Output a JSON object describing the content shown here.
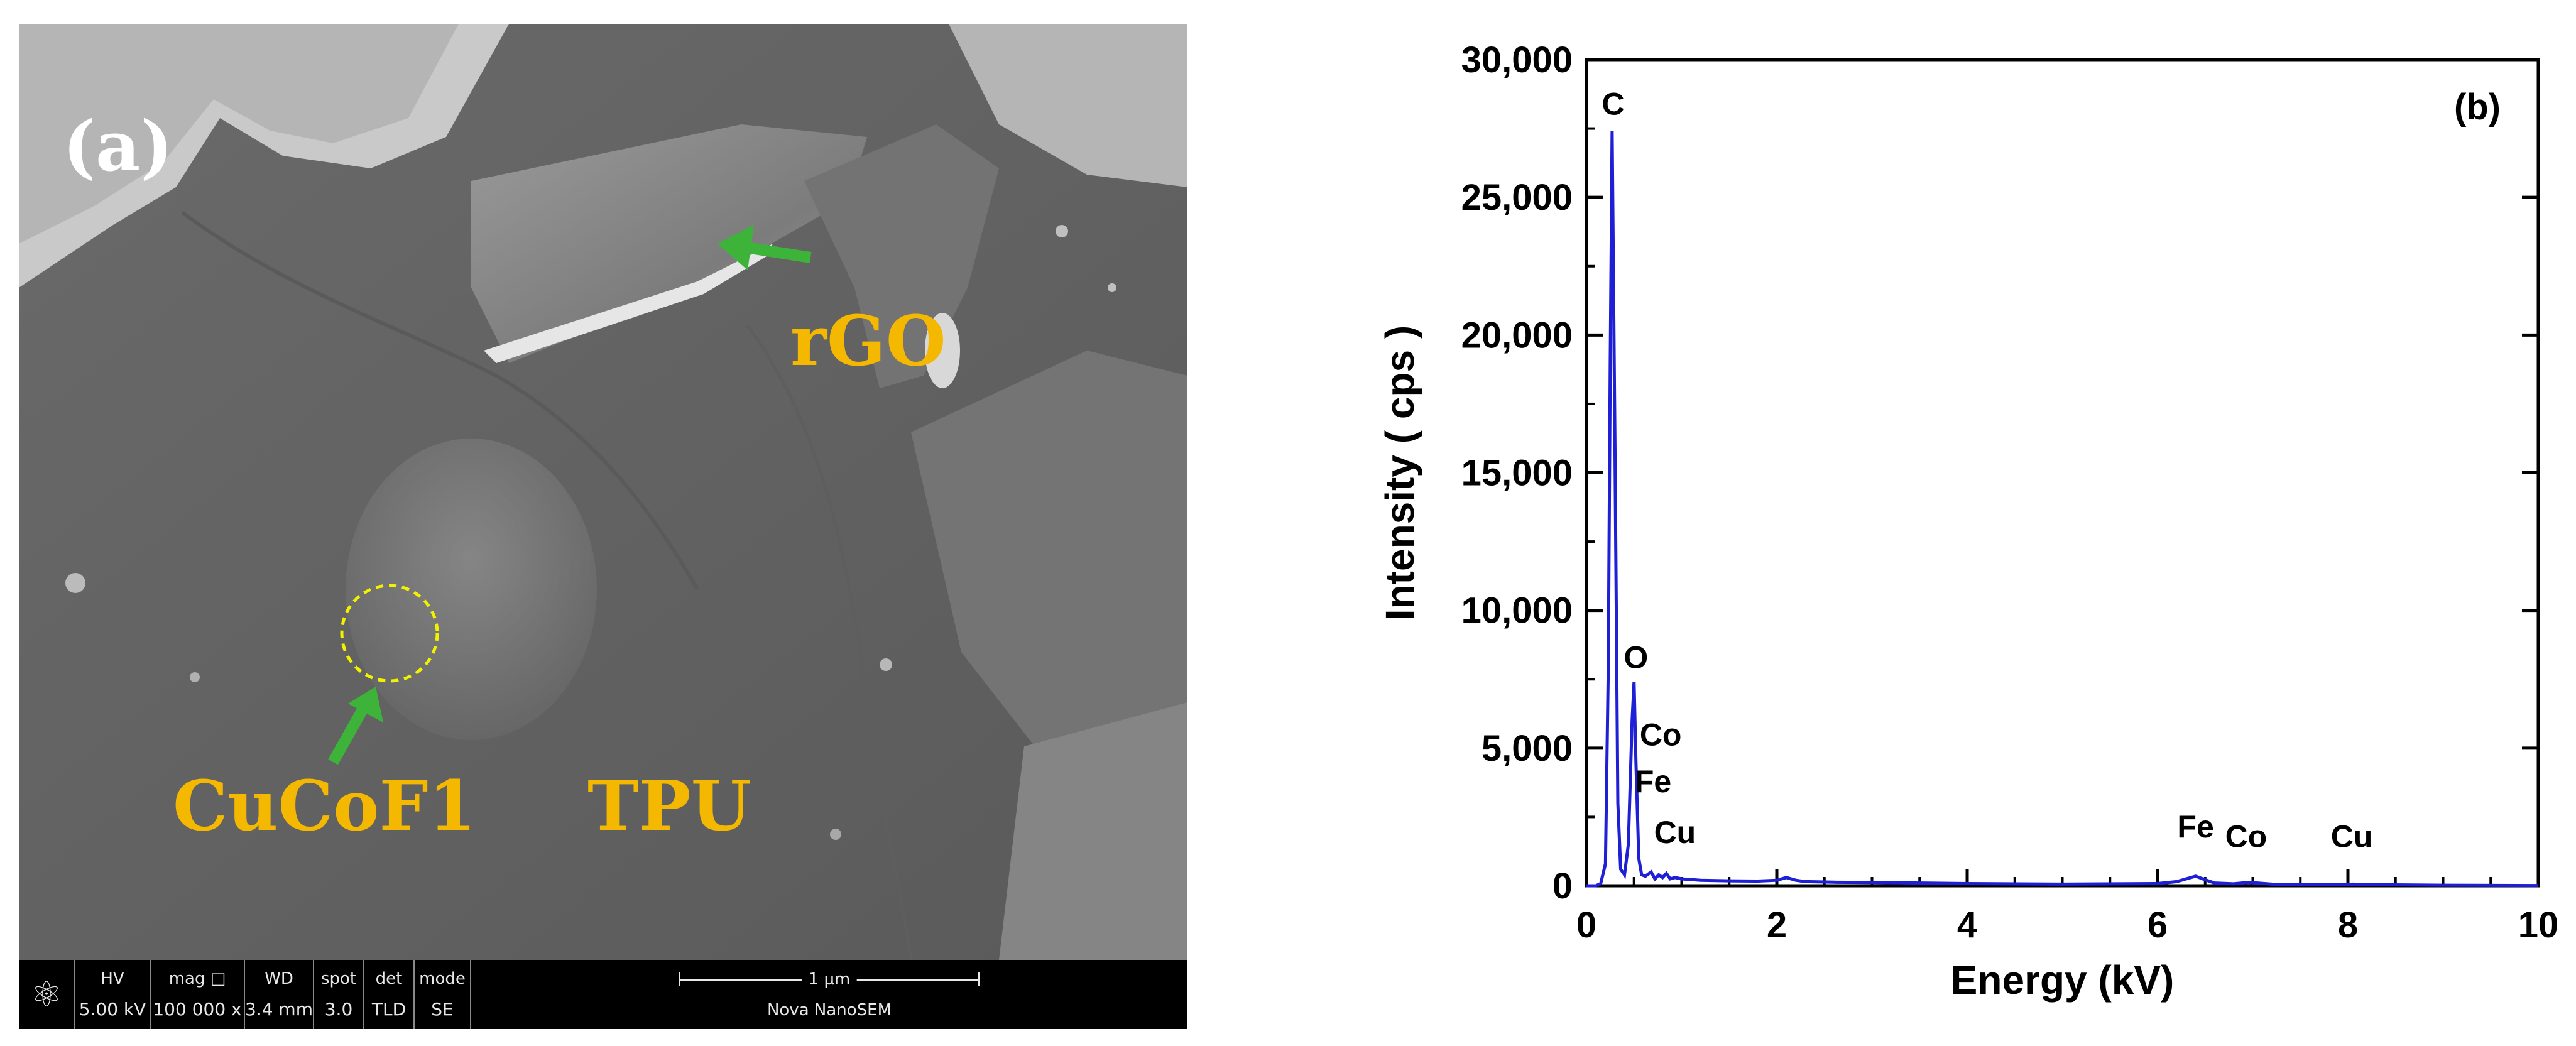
{
  "panel_a": {
    "tag": "(a)",
    "labels": {
      "rgo": "rGO",
      "cucof": "CuCoF1",
      "tpu": "TPU"
    },
    "colors": {
      "label": "#f5b800",
      "arrow": "#3db339",
      "circle": "#f2f200"
    },
    "info_bar": {
      "logo_icon": "atom-icon",
      "cells": [
        {
          "key": "HV",
          "value": "5.00 kV"
        },
        {
          "key": "mag",
          "value": "100 000 x"
        },
        {
          "key": "WD",
          "value": "3.4 mm"
        },
        {
          "key": "spot",
          "value": "3.0"
        },
        {
          "key": "det",
          "value": "TLD"
        },
        {
          "key": "mode",
          "value": "SE"
        }
      ],
      "scale_label": "1 µm",
      "instrument": "Nova NanoSEM"
    }
  },
  "chart_data": {
    "type": "line",
    "panel_tag": "(b)",
    "title": "",
    "xlabel": "Energy (kV)",
    "ylabel": "Intensity ( cps )",
    "xlim": [
      0,
      10
    ],
    "ylim": [
      0,
      30000
    ],
    "xticks": [
      0,
      2,
      4,
      6,
      8,
      10
    ],
    "xtick_labels": [
      "0",
      "2",
      "4",
      "6",
      "8",
      "10"
    ],
    "yticks": [
      0,
      5000,
      10000,
      15000,
      20000,
      25000,
      30000
    ],
    "ytick_labels": [
      "0",
      "5,000",
      "10,000",
      "15,000",
      "20,000",
      "25,000",
      "30,000"
    ],
    "grid": false,
    "line_color": "#1f1fd6",
    "series": [
      {
        "x": [
          0,
          0.1,
          0.15,
          0.2,
          0.23,
          0.25,
          0.27,
          0.3,
          0.33,
          0.36,
          0.4,
          0.44,
          0.48,
          0.5,
          0.52,
          0.55,
          0.58,
          0.62,
          0.68,
          0.72,
          0.76,
          0.8,
          0.84,
          0.88,
          0.93,
          1.0,
          1.2,
          1.5,
          1.8,
          2.0,
          2.1,
          2.2,
          2.3,
          2.6,
          3.0,
          4.0,
          5.0,
          6.0,
          6.2,
          6.3,
          6.4,
          6.5,
          6.6,
          6.8,
          6.95,
          7.05,
          7.2,
          7.6,
          8.0,
          8.05,
          8.2,
          9.0,
          10.0
        ],
        "y": [
          0,
          0,
          80,
          800,
          8000,
          19000,
          27400,
          16000,
          3000,
          600,
          400,
          1500,
          6000,
          7400,
          4500,
          1000,
          400,
          350,
          500,
          250,
          400,
          300,
          450,
          250,
          300,
          250,
          200,
          180,
          170,
          200,
          300,
          200,
          150,
          130,
          120,
          80,
          60,
          80,
          150,
          250,
          350,
          220,
          100,
          70,
          120,
          100,
          60,
          40,
          40,
          60,
          40,
          20,
          10
        ]
      }
    ],
    "annotations": [
      {
        "text": "C",
        "x": 0.28,
        "y": 27500
      },
      {
        "text": "O",
        "x": 0.52,
        "y": 7400
      },
      {
        "text": "Co",
        "x": 0.78,
        "y": 4600
      },
      {
        "text": "Fe",
        "x": 0.7,
        "y": 2900
      },
      {
        "text": "Cu",
        "x": 0.93,
        "y": 1050
      },
      {
        "text": "Fe",
        "x": 6.4,
        "y": 1250
      },
      {
        "text": "Co",
        "x": 6.93,
        "y": 900
      },
      {
        "text": "Cu",
        "x": 8.04,
        "y": 900
      }
    ]
  }
}
